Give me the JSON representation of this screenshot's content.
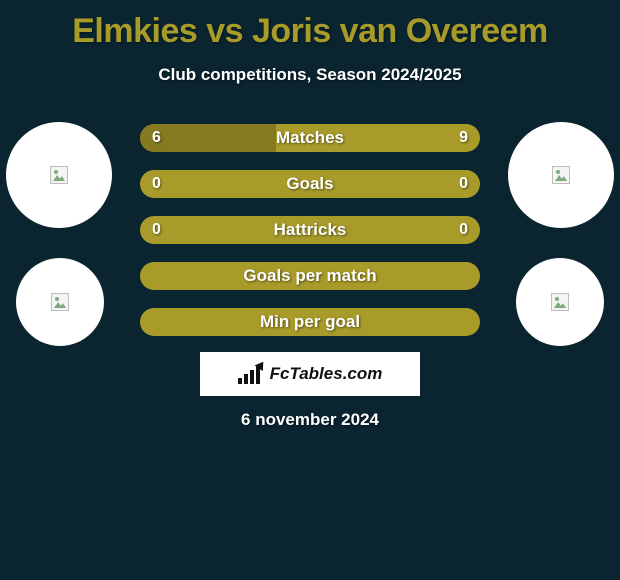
{
  "title": "Elmkies vs Joris van Overeem",
  "subtitle": "Club competitions, Season 2024/2025",
  "date": "6 november 2024",
  "brand": "FcTables.com",
  "colors": {
    "background": "#0a2530",
    "accent": "#a89b2a",
    "accent_dark": "#857a20",
    "white": "#ffffff"
  },
  "bars": [
    {
      "label": "Matches",
      "left": "6",
      "right": "9",
      "fill_left_pct": 40
    },
    {
      "label": "Goals",
      "left": "0",
      "right": "0",
      "fill_left_pct": 0
    },
    {
      "label": "Hattricks",
      "left": "0",
      "right": "0",
      "fill_left_pct": 0
    },
    {
      "label": "Goals per match",
      "left": "",
      "right": "",
      "fill_left_pct": 0
    },
    {
      "label": "Min per goal",
      "left": "",
      "right": "",
      "fill_left_pct": 0
    }
  ]
}
